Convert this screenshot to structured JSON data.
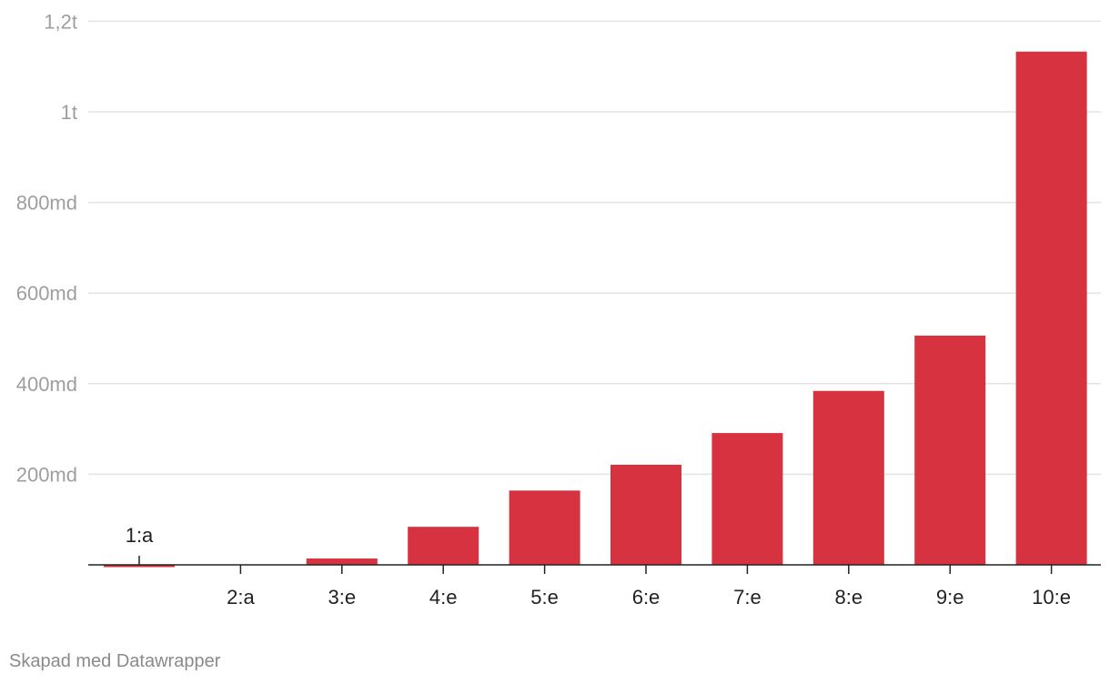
{
  "chart_data": {
    "type": "bar",
    "categories": [
      "1:a",
      "2:a",
      "3:e",
      "4:e",
      "5:e",
      "6:e",
      "7:e",
      "8:e",
      "9:e",
      "10:e"
    ],
    "values": [
      -5,
      0,
      14,
      84,
      164,
      221,
      291,
      384,
      506,
      1133
    ],
    "value_units": "md",
    "ylim": [
      0,
      1200
    ],
    "yticks": [
      {
        "value": 200,
        "label": "200md"
      },
      {
        "value": 400,
        "label": "400md"
      },
      {
        "value": 600,
        "label": "600md"
      },
      {
        "value": 800,
        "label": "800md"
      },
      {
        "value": 1000,
        "label": "1t"
      },
      {
        "value": 1200,
        "label": "1,2t"
      }
    ],
    "grid": true,
    "bar_color": "#d7323f",
    "title": "",
    "xlabel": "",
    "ylabel": ""
  },
  "footer": {
    "credit": "Skapad med Datawrapper"
  }
}
